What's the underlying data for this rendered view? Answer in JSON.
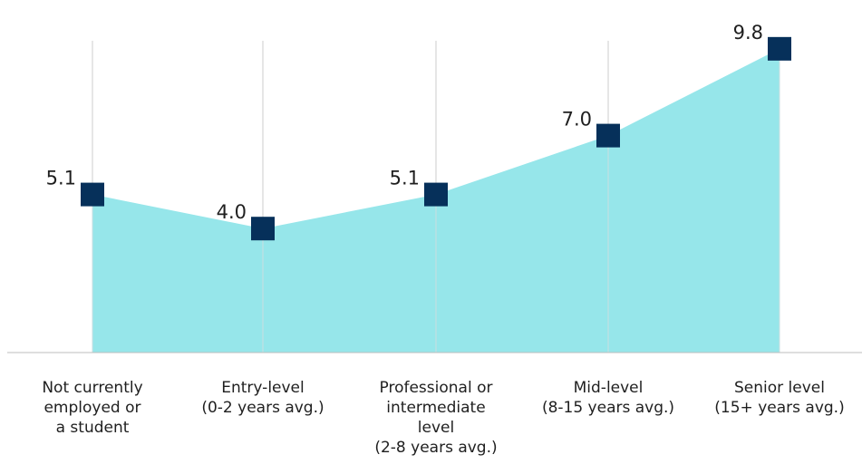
{
  "chart_data": {
    "type": "area",
    "categories": [
      "Not currently\nemployed or\na student",
      "Entry-level\n(0-2 years avg.)",
      "Professional or\nintermediate\nlevel\n(2-8 years avg.)",
      "Mid-level\n(8-15 years avg.)",
      "Senior level\n(15+ years avg.)"
    ],
    "values": [
      5.1,
      4.0,
      5.1,
      7.0,
      9.8
    ],
    "value_labels": [
      "5.1",
      "4.0",
      "5.1",
      "7.0",
      "9.8"
    ],
    "title": "",
    "xlabel": "",
    "ylabel": "",
    "ylim": [
      0,
      10
    ],
    "grid": "vertical lines at categories",
    "legend": "none",
    "colors": {
      "area": "#96e6ea",
      "marker": "#06305a",
      "grid": "#cccccc",
      "axis": "#bdbdbd",
      "text": "#1f1f1f"
    }
  }
}
